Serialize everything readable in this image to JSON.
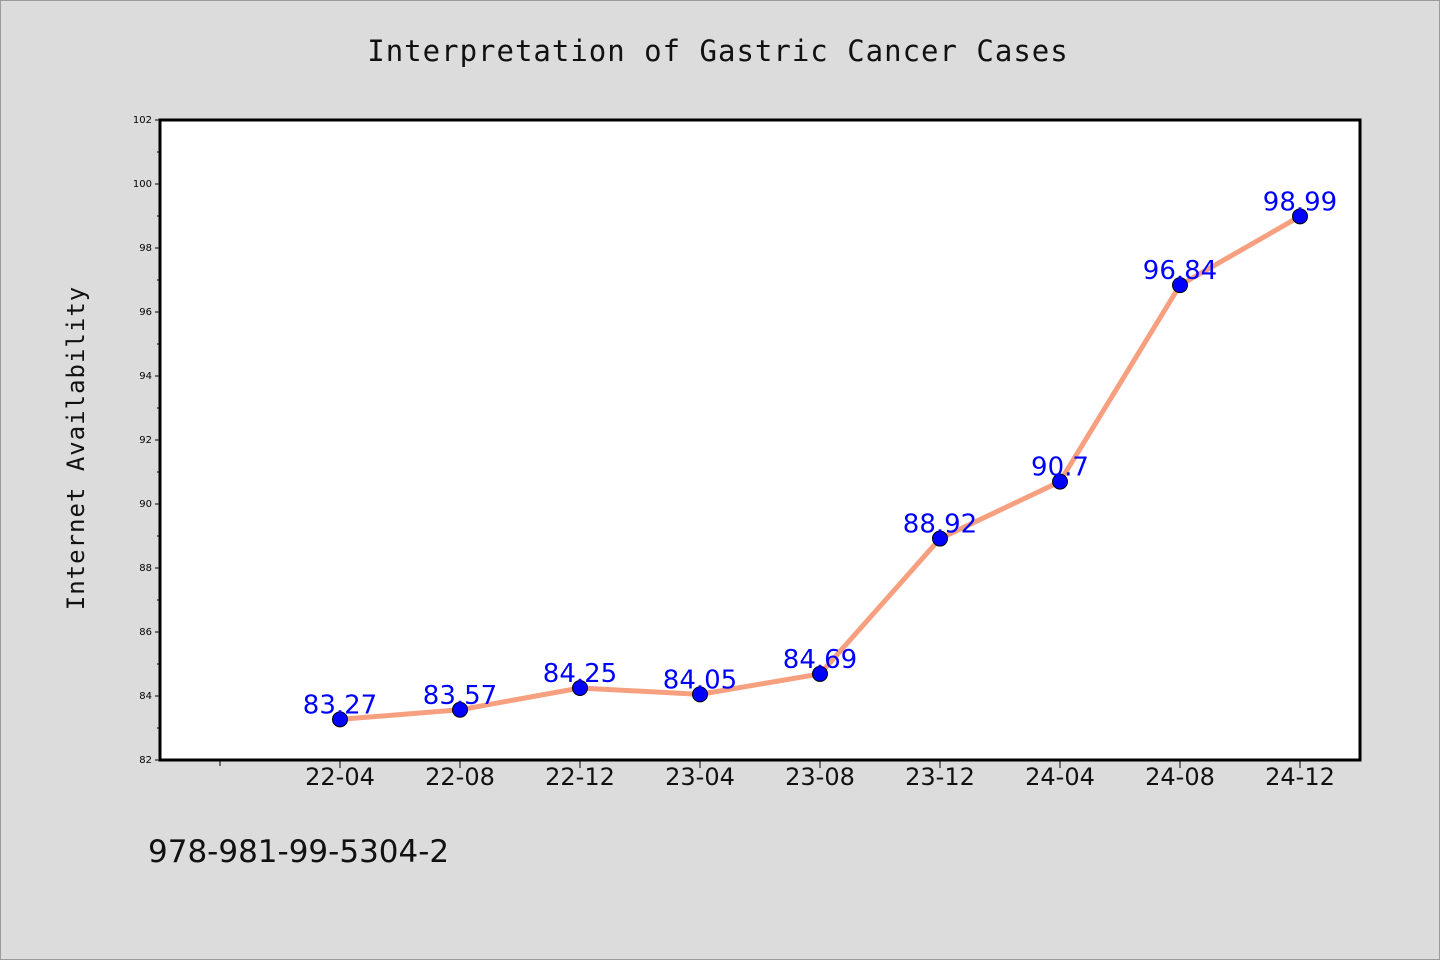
{
  "chart_data": {
    "type": "line",
    "title": "Interpretation of Gastric Cancer Cases",
    "xlabel": "",
    "ylabel": "Internet Availability",
    "categories": [
      "22-04",
      "22-08",
      "22-12",
      "23-04",
      "23-08",
      "23-12",
      "24-04",
      "24-08",
      "24-12"
    ],
    "series": [
      {
        "values": [
          83.27,
          83.57,
          84.25,
          84.05,
          84.69,
          88.92,
          90.7,
          96.84,
          98.99
        ],
        "line_color": "#f7a07f",
        "marker_color": "#0000ff"
      }
    ],
    "data_labels": [
      "83.27",
      "83.57",
      "84.25",
      "84.05",
      "84.69",
      "88.92",
      "90.7",
      "96.84",
      "98.99"
    ],
    "ylim": [
      82,
      102
    ],
    "yticks": [
      82,
      84,
      86,
      88,
      90,
      92,
      94,
      96,
      98,
      100,
      102
    ],
    "grid": false,
    "legend": "none",
    "label_color": "#0000ff",
    "background": "#dcdcdc",
    "plot_background": "#ffffff"
  },
  "footer": {
    "code": "978-981-99-5304-2"
  }
}
